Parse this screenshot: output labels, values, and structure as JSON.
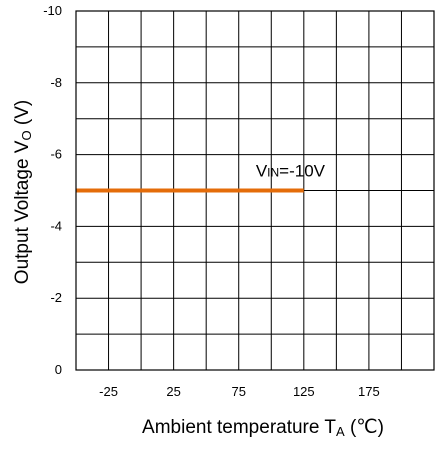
{
  "chart_data": {
    "type": "line",
    "xlabel": "Ambient temperature T",
    "xlabel_sub": "A",
    "xlabel_unit": " (℃)",
    "ylabel": "Output Voltage V",
    "ylabel_sub": "O",
    "ylabel_unit": " (V)",
    "xlim": [
      -50,
      225
    ],
    "ylim": [
      0,
      -10
    ],
    "x_tick_labels": [
      "-25",
      "25",
      "75",
      "125",
      "175"
    ],
    "x_tick_values": [
      -25,
      25,
      75,
      125,
      175
    ],
    "y_tick_labels": [
      "0",
      "-2",
      "-4",
      "-6",
      "-8",
      "-10"
    ],
    "y_tick_values": [
      0,
      -2,
      -4,
      -6,
      -8,
      -10
    ],
    "x_grid_step": 25,
    "y_grid_step": -1,
    "grid": true,
    "series": [
      {
        "color": "#E46C0A",
        "x": [
          -50,
          125
        ],
        "y": [
          -5,
          -5
        ]
      }
    ],
    "annotation": {
      "text_main": "V",
      "text_sub": "IN",
      "text_rest": "=-10V",
      "x": 125,
      "y": -5
    }
  }
}
